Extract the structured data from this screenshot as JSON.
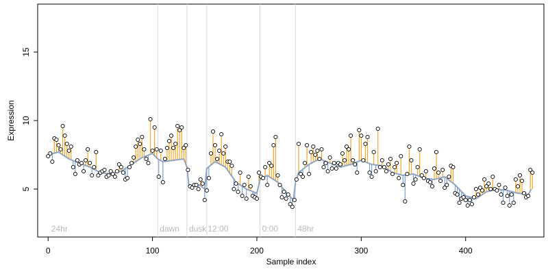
{
  "chart_data": {
    "type": "scatter",
    "title": "",
    "xlabel": "Sample index",
    "ylabel": "Expression",
    "xlim": [
      -10,
      475
    ],
    "ylim": [
      1.5,
      18.5
    ],
    "x_ticks": [
      0,
      100,
      200,
      300,
      400
    ],
    "y_ticks": [
      5,
      10,
      15
    ],
    "grid": false,
    "legend": "none",
    "colors": {
      "points_fill": "#ffffff",
      "points_stroke": "#000000",
      "fitted_line": "#8fa3c4",
      "residual_above": "#f5a623",
      "residual_below": "#7b9fd6",
      "phase_lines": "#d9d9d9",
      "phase_labels": "#b8b8b8"
    },
    "phase_boundaries": [
      105,
      133,
      152,
      203,
      237
    ],
    "phase_labels": [
      {
        "x": 3,
        "text": "24hr"
      },
      {
        "x": 107,
        "text": "dawn"
      },
      {
        "x": 135,
        "text": "dusk"
      },
      {
        "x": 153,
        "text": "12:00"
      },
      {
        "x": 205,
        "text": "0:00"
      },
      {
        "x": 239,
        "text": "48hr"
      }
    ],
    "series": [
      {
        "fitted": [
          [
            0,
            7.5
          ],
          [
            10,
            7.7
          ],
          [
            20,
            7.2
          ],
          [
            30,
            6.9
          ],
          [
            40,
            6.6
          ],
          [
            50,
            6.2
          ],
          [
            60,
            6.1
          ],
          [
            70,
            6.3
          ],
          [
            80,
            6.8
          ],
          [
            90,
            7.3
          ],
          [
            100,
            7.6
          ],
          [
            105,
            7.2
          ],
          [
            110,
            7.0
          ],
          [
            120,
            7.1
          ],
          [
            130,
            7.2
          ],
          [
            133,
            6.6
          ],
          [
            135,
            5.2
          ],
          [
            145,
            5.3
          ],
          [
            150,
            5.0
          ],
          [
            152,
            6.5
          ],
          [
            160,
            7.0
          ],
          [
            170,
            6.6
          ],
          [
            180,
            5.5
          ],
          [
            190,
            5.0
          ],
          [
            200,
            4.7
          ],
          [
            203,
            5.7
          ],
          [
            210,
            6.0
          ],
          [
            220,
            5.5
          ],
          [
            230,
            4.6
          ],
          [
            235,
            4.2
          ],
          [
            237,
            5.5
          ],
          [
            240,
            6.2
          ],
          [
            250,
            6.8
          ],
          [
            260,
            7.2
          ],
          [
            270,
            6.9
          ],
          [
            280,
            6.6
          ],
          [
            290,
            6.8
          ],
          [
            300,
            7.1
          ],
          [
            310,
            6.8
          ],
          [
            320,
            6.7
          ],
          [
            330,
            6.2
          ],
          [
            340,
            6.0
          ],
          [
            350,
            6.1
          ],
          [
            360,
            5.8
          ],
          [
            370,
            5.7
          ],
          [
            380,
            5.9
          ],
          [
            390,
            5.3
          ],
          [
            400,
            4.5
          ],
          [
            410,
            4.3
          ],
          [
            420,
            4.8
          ],
          [
            430,
            5.0
          ],
          [
            440,
            4.9
          ],
          [
            450,
            4.7
          ],
          [
            460,
            4.6
          ],
          [
            463,
            5.0
          ]
        ],
        "points": [
          [
            0,
            7.4
          ],
          [
            2,
            7.6
          ],
          [
            4,
            7.0
          ],
          [
            6,
            8.7
          ],
          [
            8,
            8.6
          ],
          [
            10,
            8.2
          ],
          [
            12,
            7.9
          ],
          [
            14,
            9.6
          ],
          [
            16,
            8.9
          ],
          [
            18,
            8.3
          ],
          [
            20,
            7.8
          ],
          [
            22,
            8.1
          ],
          [
            24,
            6.6
          ],
          [
            26,
            6.1
          ],
          [
            28,
            7.1
          ],
          [
            30,
            6.8
          ],
          [
            32,
            6.9
          ],
          [
            34,
            6.3
          ],
          [
            36,
            7.1
          ],
          [
            38,
            7.9
          ],
          [
            40,
            6.9
          ],
          [
            42,
            6.0
          ],
          [
            44,
            6.6
          ],
          [
            46,
            7.7
          ],
          [
            48,
            6.0
          ],
          [
            50,
            6.2
          ],
          [
            52,
            6.3
          ],
          [
            54,
            6.4
          ],
          [
            56,
            5.9
          ],
          [
            58,
            6.0
          ],
          [
            60,
            6.3
          ],
          [
            62,
            6.1
          ],
          [
            64,
            5.9
          ],
          [
            66,
            6.3
          ],
          [
            68,
            6.8
          ],
          [
            70,
            6.6
          ],
          [
            72,
            6.2
          ],
          [
            74,
            5.7
          ],
          [
            76,
            5.8
          ],
          [
            78,
            6.6
          ],
          [
            80,
            6.9
          ],
          [
            82,
            7.3
          ],
          [
            84,
            8.1
          ],
          [
            86,
            8.6
          ],
          [
            88,
            8.3
          ],
          [
            90,
            8.8
          ],
          [
            92,
            7.9
          ],
          [
            94,
            7.2
          ],
          [
            96,
            6.9
          ],
          [
            98,
            10.1
          ],
          [
            100,
            7.8
          ],
          [
            102,
            9.5
          ],
          [
            104,
            7.9
          ],
          [
            106,
            5.9
          ],
          [
            108,
            7.8
          ],
          [
            110,
            5.5
          ],
          [
            112,
            7.2
          ],
          [
            114,
            8.0
          ],
          [
            116,
            8.5
          ],
          [
            118,
            8.9
          ],
          [
            120,
            8.0
          ],
          [
            122,
            8.3
          ],
          [
            124,
            9.6
          ],
          [
            126,
            9.3
          ],
          [
            128,
            9.5
          ],
          [
            130,
            8.0
          ],
          [
            132,
            8.2
          ],
          [
            134,
            6.4
          ],
          [
            136,
            5.2
          ],
          [
            138,
            5.1
          ],
          [
            140,
            5.3
          ],
          [
            142,
            5.3
          ],
          [
            144,
            5.0
          ],
          [
            146,
            5.7
          ],
          [
            148,
            5.4
          ],
          [
            150,
            4.2
          ],
          [
            152,
            4.9
          ],
          [
            154,
            5.8
          ],
          [
            156,
            7.6
          ],
          [
            158,
            9.2
          ],
          [
            160,
            8.2
          ],
          [
            162,
            7.2
          ],
          [
            164,
            7.8
          ],
          [
            166,
            9.0
          ],
          [
            168,
            7.6
          ],
          [
            170,
            8.1
          ],
          [
            172,
            7.0
          ],
          [
            174,
            7.0
          ],
          [
            176,
            6.7
          ],
          [
            178,
            5.0
          ],
          [
            180,
            5.4
          ],
          [
            182,
            4.8
          ],
          [
            184,
            6.2
          ],
          [
            186,
            4.5
          ],
          [
            188,
            5.3
          ],
          [
            190,
            4.3
          ],
          [
            192,
            5.9
          ],
          [
            194,
            5.2
          ],
          [
            196,
            4.5
          ],
          [
            198,
            4.4
          ],
          [
            200,
            4.3
          ],
          [
            202,
            6.2
          ],
          [
            204,
            5.9
          ],
          [
            206,
            5.8
          ],
          [
            208,
            6.6
          ],
          [
            210,
            5.3
          ],
          [
            212,
            6.9
          ],
          [
            214,
            6.7
          ],
          [
            216,
            8.2
          ],
          [
            218,
            8.8
          ],
          [
            220,
            6.0
          ],
          [
            222,
            5.3
          ],
          [
            224,
            4.4
          ],
          [
            226,
            4.8
          ],
          [
            228,
            4.3
          ],
          [
            230,
            4.6
          ],
          [
            232,
            3.9
          ],
          [
            234,
            3.7
          ],
          [
            236,
            4.2
          ],
          [
            238,
            5.7
          ],
          [
            240,
            8.3
          ],
          [
            242,
            6.1
          ],
          [
            244,
            5.9
          ],
          [
            246,
            6.9
          ],
          [
            248,
            8.2
          ],
          [
            250,
            6.1
          ],
          [
            252,
            7.7
          ],
          [
            254,
            8.1
          ],
          [
            256,
            7.5
          ],
          [
            258,
            7.8
          ],
          [
            260,
            7.2
          ],
          [
            262,
            7.9
          ],
          [
            264,
            6.6
          ],
          [
            266,
            6.9
          ],
          [
            268,
            6.3
          ],
          [
            270,
            7.3
          ],
          [
            272,
            6.5
          ],
          [
            274,
            6.9
          ],
          [
            276,
            6.5
          ],
          [
            278,
            6.9
          ],
          [
            280,
            6.8
          ],
          [
            282,
            7.6
          ],
          [
            284,
            7.1
          ],
          [
            286,
            8.1
          ],
          [
            288,
            7.9
          ],
          [
            290,
            8.9
          ],
          [
            292,
            7.1
          ],
          [
            294,
            6.8
          ],
          [
            296,
            6.2
          ],
          [
            298,
            9.3
          ],
          [
            300,
            8.9
          ],
          [
            302,
            7.1
          ],
          [
            304,
            8.3
          ],
          [
            306,
            8.8
          ],
          [
            308,
            6.2
          ],
          [
            310,
            5.9
          ],
          [
            312,
            7.7
          ],
          [
            314,
            6.3
          ],
          [
            316,
            9.4
          ],
          [
            318,
            6.6
          ],
          [
            320,
            7.1
          ],
          [
            322,
            6.6
          ],
          [
            324,
            6.3
          ],
          [
            326,
            6.8
          ],
          [
            328,
            7.2
          ],
          [
            330,
            6.1
          ],
          [
            332,
            6.6
          ],
          [
            334,
            6.9
          ],
          [
            336,
            5.8
          ],
          [
            338,
            7.4
          ],
          [
            340,
            5.3
          ],
          [
            342,
            4.1
          ],
          [
            344,
            6.1
          ],
          [
            346,
            8.1
          ],
          [
            348,
            7.1
          ],
          [
            350,
            5.4
          ],
          [
            352,
            5.7
          ],
          [
            354,
            6.6
          ],
          [
            356,
            7.9
          ],
          [
            358,
            6.0
          ],
          [
            360,
            5.8
          ],
          [
            362,
            6.3
          ],
          [
            364,
            5.6
          ],
          [
            366,
            5.5
          ],
          [
            368,
            5.2
          ],
          [
            370,
            6.5
          ],
          [
            372,
            7.7
          ],
          [
            374,
            6.2
          ],
          [
            376,
            5.6
          ],
          [
            378,
            6.4
          ],
          [
            380,
            5.1
          ],
          [
            382,
            5.3
          ],
          [
            384,
            5.9
          ],
          [
            386,
            6.7
          ],
          [
            388,
            6.6
          ],
          [
            390,
            4.7
          ],
          [
            392,
            4.6
          ],
          [
            394,
            4.0
          ],
          [
            396,
            4.3
          ],
          [
            398,
            4.4
          ],
          [
            400,
            4.2
          ],
          [
            402,
            3.8
          ],
          [
            404,
            4.2
          ],
          [
            406,
            3.9
          ],
          [
            408,
            4.4
          ],
          [
            410,
            5.0
          ],
          [
            412,
            4.6
          ],
          [
            414,
            5.1
          ],
          [
            416,
            4.9
          ],
          [
            418,
            5.7
          ],
          [
            420,
            5.2
          ],
          [
            422,
            5.4
          ],
          [
            424,
            5.0
          ],
          [
            426,
            5.9
          ],
          [
            428,
            5.0
          ],
          [
            430,
            4.9
          ],
          [
            432,
            5.3
          ],
          [
            434,
            4.6
          ],
          [
            436,
            4.0
          ],
          [
            438,
            5.1
          ],
          [
            440,
            4.5
          ],
          [
            442,
            3.8
          ],
          [
            444,
            4.6
          ],
          [
            446,
            4.0
          ],
          [
            448,
            5.7
          ],
          [
            450,
            5.2
          ],
          [
            452,
            6.0
          ],
          [
            454,
            5.6
          ],
          [
            456,
            4.7
          ],
          [
            458,
            4.4
          ],
          [
            460,
            4.5
          ],
          [
            462,
            6.4
          ],
          [
            464,
            6.2
          ]
        ]
      }
    ]
  }
}
